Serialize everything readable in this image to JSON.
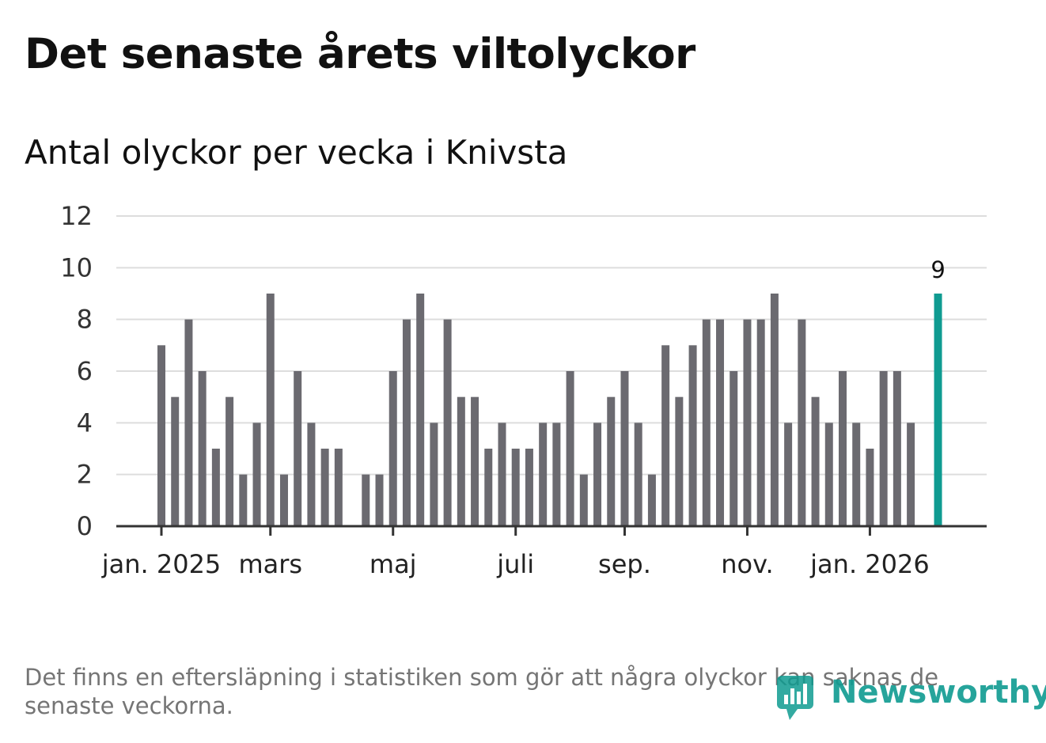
{
  "title": "Det senaste årets viltolyckor",
  "subtitle": "Antal olyckor per vecka i Knivsta",
  "footnote": "Det finns en eftersläpning i statistiken som gör att några olyckor kan saknas de senaste veckorna.",
  "brand": {
    "name": "Newsworthy",
    "color": "#0f9b91"
  },
  "chart_data": {
    "type": "bar",
    "title": "Antal olyckor per vecka i Knivsta",
    "ylim": [
      0,
      12
    ],
    "yticks": [
      0,
      2,
      4,
      6,
      8,
      10,
      12
    ],
    "grid": true,
    "bar_color": "#6b6a70",
    "highlight_color": "#0f9b91",
    "values": [
      7,
      5,
      8,
      6,
      3,
      5,
      2,
      4,
      9,
      2,
      6,
      4,
      3,
      3,
      0,
      2,
      2,
      6,
      8,
      9,
      4,
      8,
      5,
      5,
      3,
      4,
      3,
      3,
      4,
      4,
      6,
      2,
      4,
      5,
      6,
      4,
      2,
      7,
      5,
      7,
      8,
      8,
      6,
      8,
      8,
      9,
      4,
      8,
      5,
      4,
      6,
      4,
      3,
      6,
      6,
      4,
      null,
      9
    ],
    "highlight_index": 57,
    "highlight_label": "9",
    "x_labels": [
      {
        "label": "jan. 2025",
        "week_index": 0
      },
      {
        "label": "mars",
        "week_index": 8
      },
      {
        "label": "maj",
        "week_index": 17
      },
      {
        "label": "juli",
        "week_index": 26
      },
      {
        "label": "sep.",
        "week_index": 34
      },
      {
        "label": "nov.",
        "week_index": 43
      },
      {
        "label": "jan. 2026",
        "week_index": 52
      }
    ]
  }
}
